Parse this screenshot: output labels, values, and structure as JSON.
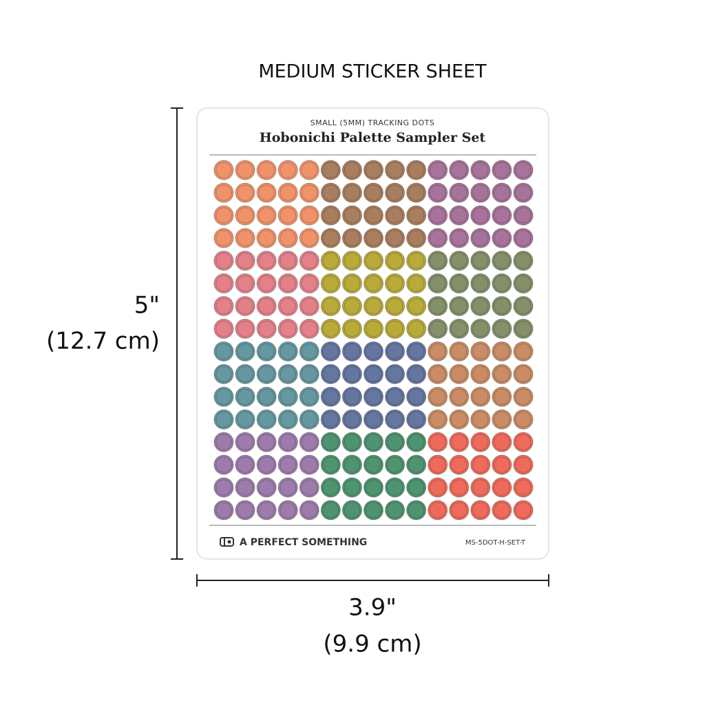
{
  "header": {
    "title": "MEDIUM STICKER SHEET"
  },
  "height_label": {
    "inches": "5\"",
    "cm": "(12.7 cm)"
  },
  "width_label": {
    "inches": "3.9\"",
    "cm": "(9.9 cm)"
  },
  "sheet": {
    "subtitle": "SMALL (5MM) TRACKING DOTS",
    "title": "Hobonichi Palette Sampler Set",
    "brand": "A PERFECT SOMETHING",
    "code": "MS-5DOT-H-SET-T",
    "dot_blocks": [
      [
        "#f0936a",
        "#a97e5e",
        "#a8739a"
      ],
      [
        "#e48088",
        "#b9ab3a",
        "#84906a"
      ],
      [
        "#6598a0",
        "#6576a0",
        "#c98c64"
      ],
      [
        "#9d7cac",
        "#4f9470",
        "#ee6b5b"
      ]
    ]
  }
}
